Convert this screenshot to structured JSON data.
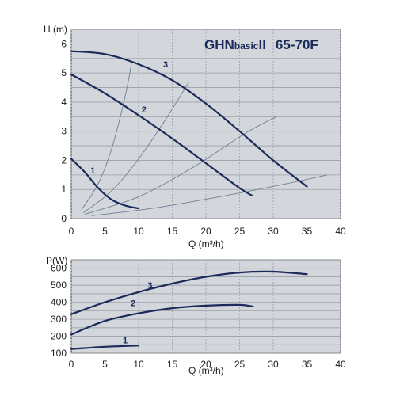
{
  "chart_data": [
    {
      "type": "line",
      "title_parts": {
        "a": "GHN",
        "b": "basic",
        "c": "II",
        "d": "65-70F"
      },
      "xlabel": "Q (m³/h)",
      "ylabel": "H (m)",
      "xlim": [
        0,
        40
      ],
      "ylim": [
        0,
        6.5
      ],
      "xticks": [
        0,
        5,
        10,
        15,
        20,
        25,
        30,
        35,
        40
      ],
      "yticks": [
        0,
        1,
        2,
        3,
        4,
        5,
        6
      ],
      "grid": true,
      "series": [
        {
          "name": "1",
          "x": [
            0,
            2,
            4,
            6,
            8,
            10
          ],
          "y": [
            2.05,
            1.6,
            1.05,
            0.65,
            0.45,
            0.35
          ]
        },
        {
          "name": "2",
          "x": [
            0,
            5,
            10,
            15,
            20,
            25,
            26.8
          ],
          "y": [
            4.95,
            4.3,
            3.55,
            2.75,
            1.9,
            1.05,
            0.8
          ]
        },
        {
          "name": "3",
          "x": [
            0,
            5,
            10,
            15,
            20,
            25,
            30,
            35
          ],
          "y": [
            5.75,
            5.65,
            5.3,
            4.75,
            3.95,
            3.0,
            2.0,
            1.1
          ]
        }
      ],
      "system_curves": [
        {
          "x": [
            1.5,
            4,
            6,
            8,
            9
          ],
          "y": [
            0.3,
            1.2,
            2.4,
            4.2,
            5.4
          ]
        },
        {
          "x": [
            1.8,
            6,
            10,
            14,
            17.5
          ],
          "y": [
            0.2,
            0.95,
            2.05,
            3.4,
            4.7
          ]
        },
        {
          "x": [
            2,
            10,
            18,
            26,
            30.5
          ],
          "y": [
            0.15,
            0.75,
            1.75,
            2.95,
            3.5
          ]
        },
        {
          "x": [
            3,
            12,
            22,
            32,
            38
          ],
          "y": [
            0.1,
            0.35,
            0.75,
            1.2,
            1.5
          ]
        }
      ],
      "curve_labels": [
        {
          "text": "1",
          "x": 3.2,
          "y": 1.55
        },
        {
          "text": "2",
          "x": 10.8,
          "y": 3.65
        },
        {
          "text": "3",
          "x": 14,
          "y": 5.2
        }
      ]
    },
    {
      "type": "line",
      "xlabel": "Q (m³/h)",
      "ylabel": "P(W)",
      "xlim": [
        0,
        40
      ],
      "ylim": [
        100,
        650
      ],
      "xticks": [
        0,
        5,
        10,
        15,
        20,
        25,
        30,
        35,
        40
      ],
      "yticks": [
        100,
        200,
        300,
        400,
        500,
        600
      ],
      "grid": true,
      "series": [
        {
          "name": "1",
          "x": [
            0,
            5,
            10
          ],
          "y": [
            125,
            138,
            145
          ]
        },
        {
          "name": "2",
          "x": [
            0,
            5,
            10,
            15,
            20,
            25,
            27
          ],
          "y": [
            210,
            290,
            335,
            365,
            380,
            385,
            375
          ]
        },
        {
          "name": "3",
          "x": [
            0,
            5,
            10,
            15,
            20,
            25,
            30,
            35
          ],
          "y": [
            330,
            400,
            460,
            510,
            550,
            575,
            580,
            565
          ]
        }
      ],
      "curve_labels": [
        {
          "text": "1",
          "x": 8,
          "y": 158
        },
        {
          "text": "2",
          "x": 9.2,
          "y": 378
        },
        {
          "text": "3",
          "x": 11.7,
          "y": 483
        }
      ]
    }
  ],
  "colors": {
    "plot_bg": "#d3d6db",
    "grid": "#9aa0a8",
    "curve": "#1a2a5a",
    "system_curve": "#6f7f97",
    "axis": "#444444"
  }
}
